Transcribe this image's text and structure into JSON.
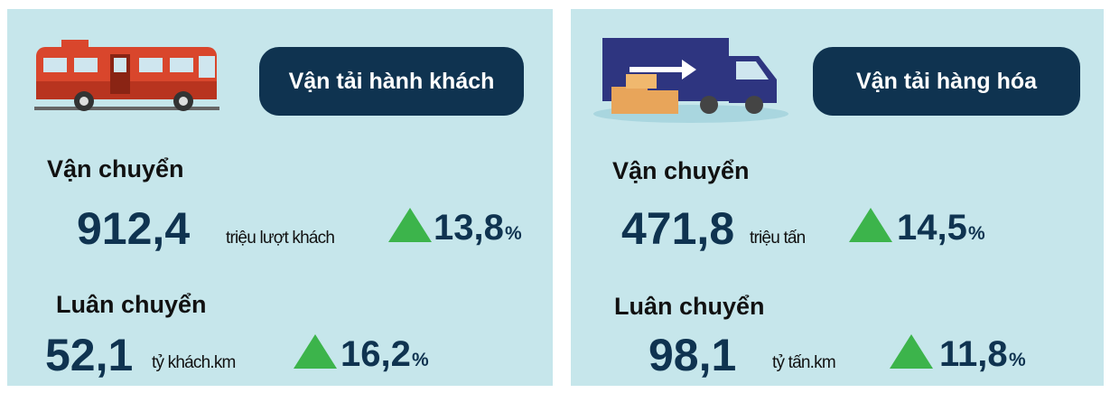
{
  "panels": [
    {
      "title": "Vận tải hành khách",
      "stats": [
        {
          "label": "Vận chuyển",
          "value": "912,4",
          "unit": "triệu lượt khách",
          "change": "13,8",
          "percent_sign": "%"
        },
        {
          "label": "Luân chuyển",
          "value": "52,1",
          "unit": "tỷ khách.km",
          "change": "16,2",
          "percent_sign": "%"
        }
      ]
    },
    {
      "title": "Vận tải hàng hóa",
      "stats": [
        {
          "label": "Vận chuyển",
          "value": "471,8",
          "unit": "triệu tấn",
          "change": "14,5",
          "percent_sign": "%"
        },
        {
          "label": "Luân chuyển",
          "value": "98,1",
          "unit": "tỷ tấn.km",
          "change": "11,8",
          "percent_sign": "%"
        }
      ]
    }
  ]
}
